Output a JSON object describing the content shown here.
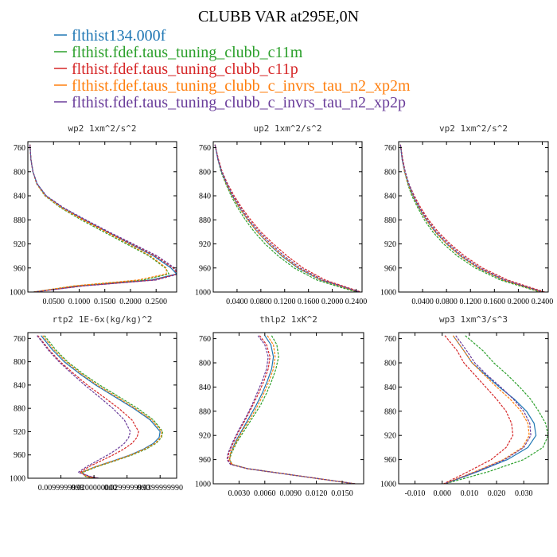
{
  "figure": {
    "title": "CLUBB VAR at295E,0N",
    "legend": [
      {
        "label": "flthist134.000f",
        "color": "#1f77b4"
      },
      {
        "label": "flthist.fdef.taus_tuning_clubb_c11m",
        "color": "#2ca02c"
      },
      {
        "label": "flthist.fdef.taus_tuning_clubb_c11p",
        "color": "#d62728"
      },
      {
        "label": "flthist.fdef.taus_tuning_clubb_c_invrs_tau_n2_xp2m",
        "color": "#ff7f0e"
      },
      {
        "label": "flthist.fdef.taus_tuning_clubb_c_invrs_tau_n2_xp2p",
        "color": "#6a3d9a"
      }
    ]
  },
  "chart_data": [
    {
      "type": "line",
      "title": "wp2   1xm^2/s^2",
      "xlim": [
        0.0,
        0.29
      ],
      "ylim": [
        1000,
        750
      ],
      "xticks": [
        0.05,
        0.1,
        0.15,
        0.2,
        0.25
      ],
      "xtick_labels": [
        "0.0500",
        "0.1000",
        "0.1500",
        "0.2000",
        "0.2500"
      ],
      "yticks": [
        760,
        800,
        840,
        880,
        920,
        960,
        1000
      ],
      "y": [
        755,
        780,
        800,
        820,
        840,
        860,
        880,
        900,
        920,
        940,
        960,
        970,
        980,
        990,
        1000
      ],
      "series": [
        {
          "color": "#1f77b4",
          "x": [
            0.004,
            0.006,
            0.01,
            0.018,
            0.035,
            0.068,
            0.11,
            0.155,
            0.2,
            0.245,
            0.279,
            0.29,
            0.24,
            0.1,
            0.012
          ]
        },
        {
          "color": "#2ca02c",
          "x": [
            0.004,
            0.006,
            0.01,
            0.017,
            0.033,
            0.064,
            0.104,
            0.148,
            0.192,
            0.236,
            0.268,
            0.275,
            0.225,
            0.092,
            0.011
          ]
        },
        {
          "color": "#d62728",
          "x": [
            0.004,
            0.006,
            0.01,
            0.018,
            0.035,
            0.068,
            0.11,
            0.155,
            0.202,
            0.248,
            0.283,
            0.292,
            0.245,
            0.104,
            0.012
          ]
        },
        {
          "color": "#ff7f0e",
          "x": [
            0.004,
            0.006,
            0.01,
            0.017,
            0.034,
            0.066,
            0.107,
            0.152,
            0.196,
            0.239,
            0.27,
            0.27,
            0.215,
            0.088,
            0.011
          ]
        },
        {
          "color": "#6a3d9a",
          "x": [
            0.004,
            0.006,
            0.01,
            0.018,
            0.036,
            0.07,
            0.113,
            0.158,
            0.205,
            0.252,
            0.286,
            0.294,
            0.25,
            0.108,
            0.012
          ]
        }
      ]
    },
    {
      "type": "line",
      "title": "up2   1xm^2/s^2",
      "xlim": [
        0.0,
        0.25
      ],
      "ylim": [
        1000,
        750
      ],
      "xticks": [
        0.04,
        0.08,
        0.12,
        0.16,
        0.2,
        0.24
      ],
      "xtick_labels": [
        "0.0400",
        "0.0800",
        "0.1200",
        "0.1600",
        "0.2000",
        "0.2400"
      ],
      "yticks": [
        760,
        800,
        840,
        880,
        920,
        960,
        1000
      ],
      "y": [
        755,
        780,
        800,
        820,
        840,
        860,
        880,
        900,
        920,
        940,
        960,
        980,
        1000
      ],
      "series": [
        {
          "color": "#1f77b4",
          "x": [
            0.003,
            0.008,
            0.014,
            0.022,
            0.032,
            0.044,
            0.058,
            0.074,
            0.093,
            0.115,
            0.142,
            0.18,
            0.245
          ]
        },
        {
          "color": "#2ca02c",
          "x": [
            0.003,
            0.008,
            0.013,
            0.021,
            0.03,
            0.041,
            0.054,
            0.069,
            0.087,
            0.109,
            0.136,
            0.174,
            0.24
          ]
        },
        {
          "color": "#d62728",
          "x": [
            0.003,
            0.009,
            0.015,
            0.024,
            0.035,
            0.048,
            0.063,
            0.08,
            0.101,
            0.124,
            0.151,
            0.188,
            0.248
          ]
        },
        {
          "color": "#ff7f0e",
          "x": [
            0.003,
            0.008,
            0.014,
            0.022,
            0.032,
            0.044,
            0.058,
            0.074,
            0.094,
            0.116,
            0.143,
            0.181,
            0.244
          ]
        },
        {
          "color": "#6a3d9a",
          "x": [
            0.003,
            0.008,
            0.014,
            0.023,
            0.033,
            0.046,
            0.06,
            0.077,
            0.097,
            0.119,
            0.146,
            0.184,
            0.246
          ]
        }
      ]
    },
    {
      "type": "line",
      "title": "vp2   1xm^2/s^2",
      "xlim": [
        0.0,
        0.25
      ],
      "ylim": [
        1000,
        750
      ],
      "xticks": [
        0.04,
        0.08,
        0.12,
        0.16,
        0.2,
        0.24
      ],
      "xtick_labels": [
        "0.0400",
        "0.0800",
        "0.1200",
        "0.1600",
        "0.2000",
        "0.2400"
      ],
      "yticks": [
        760,
        800,
        840,
        880,
        920,
        960,
        1000
      ],
      "y": [
        755,
        780,
        800,
        820,
        840,
        860,
        880,
        900,
        920,
        940,
        960,
        980,
        1000
      ],
      "series": [
        {
          "color": "#1f77b4",
          "x": [
            0.003,
            0.006,
            0.01,
            0.016,
            0.024,
            0.034,
            0.046,
            0.061,
            0.08,
            0.103,
            0.133,
            0.175,
            0.24
          ]
        },
        {
          "color": "#2ca02c",
          "x": [
            0.003,
            0.006,
            0.01,
            0.015,
            0.022,
            0.032,
            0.043,
            0.057,
            0.075,
            0.098,
            0.128,
            0.17,
            0.236
          ]
        },
        {
          "color": "#d62728",
          "x": [
            0.003,
            0.007,
            0.011,
            0.017,
            0.026,
            0.037,
            0.05,
            0.066,
            0.086,
            0.11,
            0.14,
            0.182,
            0.244
          ]
        },
        {
          "color": "#ff7f0e",
          "x": [
            0.003,
            0.006,
            0.01,
            0.016,
            0.024,
            0.034,
            0.046,
            0.061,
            0.08,
            0.103,
            0.133,
            0.175,
            0.239
          ]
        },
        {
          "color": "#6a3d9a",
          "x": [
            0.003,
            0.006,
            0.011,
            0.017,
            0.025,
            0.035,
            0.048,
            0.063,
            0.083,
            0.106,
            0.136,
            0.178,
            0.241
          ]
        }
      ]
    },
    {
      "type": "line",
      "title": "rtp2   1E-6x(kg/kg)^2",
      "xlim": [
        0.0,
        0.045
      ],
      "ylim": [
        1000,
        750
      ],
      "xticks": [
        0.01,
        0.02,
        0.03,
        0.04
      ],
      "xtick_labels": [
        "0.0099999998",
        "0.0200000000",
        "0.0299999990",
        "0.0399999990"
      ],
      "yticks": [
        760,
        800,
        840,
        880,
        920,
        960,
        1000
      ],
      "y": [
        755,
        780,
        800,
        820,
        840,
        860,
        880,
        900,
        920,
        930,
        940,
        950,
        960,
        970,
        980,
        990,
        997,
        1000
      ],
      "series": [
        {
          "color": "#1f77b4",
          "x": [
            0.004,
            0.0075,
            0.011,
            0.0155,
            0.0205,
            0.0262,
            0.032,
            0.037,
            0.04,
            0.0397,
            0.038,
            0.035,
            0.031,
            0.026,
            0.0205,
            0.0162,
            0.0175,
            0.02
          ]
        },
        {
          "color": "#2ca02c",
          "x": [
            0.005,
            0.0085,
            0.012,
            0.0165,
            0.0217,
            0.0275,
            0.0332,
            0.038,
            0.0408,
            0.0404,
            0.0388,
            0.0357,
            0.0316,
            0.0265,
            0.021,
            0.0165,
            0.0175,
            0.02
          ]
        },
        {
          "color": "#d62728",
          "x": [
            0.003,
            0.0065,
            0.0098,
            0.0138,
            0.018,
            0.0228,
            0.0275,
            0.0315,
            0.0335,
            0.033,
            0.0315,
            0.029,
            0.0258,
            0.0222,
            0.0185,
            0.0158,
            0.0185,
            0.021
          ]
        },
        {
          "color": "#ff7f0e",
          "x": [
            0.0045,
            0.008,
            0.0116,
            0.016,
            0.021,
            0.0268,
            0.0325,
            0.0375,
            0.0405,
            0.0402,
            0.0385,
            0.0353,
            0.0312,
            0.0262,
            0.0206,
            0.0162,
            0.0175,
            0.02
          ]
        },
        {
          "color": "#6a3d9a",
          "x": [
            0.0028,
            0.0062,
            0.0094,
            0.0132,
            0.0172,
            0.0215,
            0.0257,
            0.0292,
            0.031,
            0.0305,
            0.0292,
            0.027,
            0.0242,
            0.021,
            0.0178,
            0.0152,
            0.019,
            0.0215
          ]
        }
      ]
    },
    {
      "type": "line",
      "title": "thlp2   1xK^2",
      "xlim": [
        0.0,
        0.0175
      ],
      "ylim": [
        1000,
        750
      ],
      "xticks": [
        0.003,
        0.006,
        0.009,
        0.012,
        0.015
      ],
      "xtick_labels": [
        "0.0030",
        "0.0060",
        "0.0090",
        "0.0120",
        "0.0150"
      ],
      "yticks": [
        760,
        800,
        840,
        880,
        920,
        960,
        1000
      ],
      "y": [
        755,
        770,
        790,
        810,
        830,
        850,
        870,
        890,
        910,
        930,
        950,
        960,
        968,
        975,
        985,
        995,
        1000
      ],
      "series": [
        {
          "color": "#1f77b4",
          "x": [
            0.006,
            0.0067,
            0.007,
            0.0068,
            0.0063,
            0.0057,
            0.005,
            0.0042,
            0.0034,
            0.0026,
            0.002,
            0.0019,
            0.0022,
            0.004,
            0.009,
            0.014,
            0.0165
          ]
        },
        {
          "color": "#2ca02c",
          "x": [
            0.0068,
            0.0074,
            0.0076,
            0.0073,
            0.0068,
            0.0062,
            0.0055,
            0.0046,
            0.0037,
            0.0028,
            0.0021,
            0.0019,
            0.0022,
            0.004,
            0.009,
            0.014,
            0.0165
          ]
        },
        {
          "color": "#d62728",
          "x": [
            0.0054,
            0.0062,
            0.0066,
            0.0064,
            0.0059,
            0.0053,
            0.0046,
            0.0039,
            0.0031,
            0.0024,
            0.0018,
            0.0017,
            0.0021,
            0.004,
            0.009,
            0.014,
            0.0165
          ]
        },
        {
          "color": "#ff7f0e",
          "x": [
            0.0063,
            0.007,
            0.0072,
            0.007,
            0.0065,
            0.0059,
            0.0052,
            0.0044,
            0.0035,
            0.0027,
            0.002,
            0.0019,
            0.0022,
            0.004,
            0.009,
            0.014,
            0.0165
          ]
        },
        {
          "color": "#6a3d9a",
          "x": [
            0.0052,
            0.006,
            0.0064,
            0.0062,
            0.0057,
            0.0051,
            0.0045,
            0.0038,
            0.003,
            0.0023,
            0.0017,
            0.0016,
            0.002,
            0.004,
            0.009,
            0.014,
            0.0165
          ]
        }
      ]
    },
    {
      "type": "line",
      "title": "wp3   1xm^3/s^3",
      "xlim": [
        -0.016,
        0.039
      ],
      "ylim": [
        1000,
        750
      ],
      "xticks": [
        -0.01,
        0.0,
        0.01,
        0.02,
        0.03
      ],
      "xtick_labels": [
        "-0.010",
        "0.000",
        "0.010",
        "0.020",
        "0.030"
      ],
      "yticks": [
        760,
        800,
        840,
        880,
        920,
        960,
        1000
      ],
      "y": [
        755,
        780,
        800,
        820,
        840,
        860,
        880,
        900,
        920,
        940,
        960,
        980,
        1000
      ],
      "series": [
        {
          "color": "#1f77b4",
          "x": [
            0.004,
            0.008,
            0.011,
            0.016,
            0.021,
            0.0265,
            0.031,
            0.0338,
            0.0345,
            0.0315,
            0.024,
            0.013,
            0.001
          ]
        },
        {
          "color": "#2ca02c",
          "x": [
            0.0085,
            0.015,
            0.019,
            0.024,
            0.0285,
            0.0325,
            0.0355,
            0.038,
            0.039,
            0.037,
            0.03,
            0.017,
            0.001
          ]
        },
        {
          "color": "#d62728",
          "x": [
            0.001,
            0.0055,
            0.008,
            0.012,
            0.016,
            0.02,
            0.0235,
            0.0255,
            0.026,
            0.0235,
            0.018,
            0.0095,
            0.0005
          ]
        },
        {
          "color": "#ff7f0e",
          "x": [
            0.004,
            0.008,
            0.011,
            0.0155,
            0.02,
            0.025,
            0.029,
            0.0315,
            0.032,
            0.0295,
            0.0225,
            0.012,
            0.0008
          ]
        },
        {
          "color": "#6a3d9a",
          "x": [
            0.005,
            0.009,
            0.012,
            0.0165,
            0.0215,
            0.0262,
            0.03,
            0.0322,
            0.0326,
            0.03,
            0.023,
            0.0125,
            0.0008
          ]
        }
      ]
    }
  ]
}
